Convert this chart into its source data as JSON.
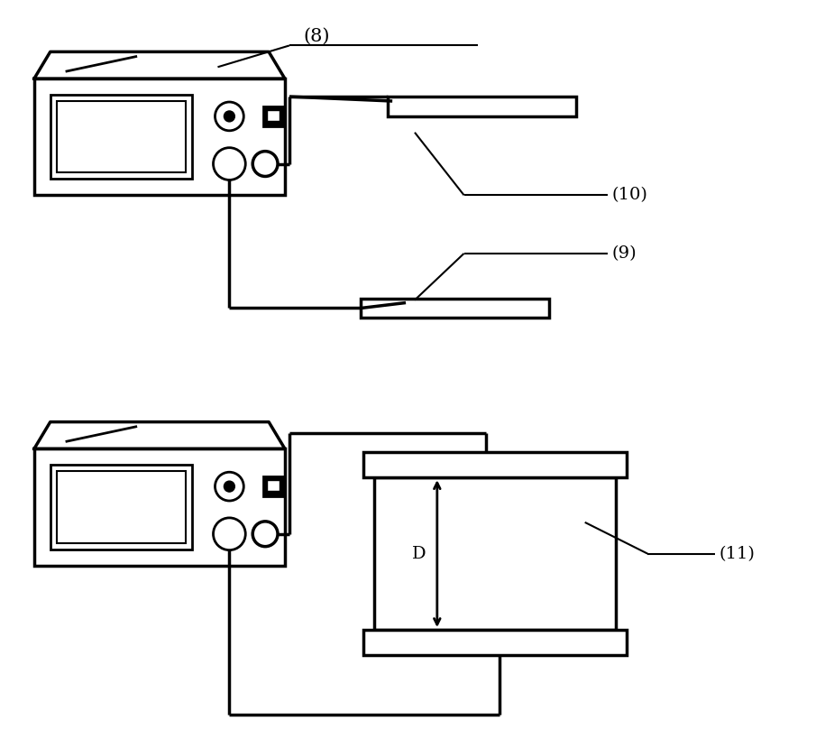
{
  "bg_color": "#ffffff",
  "line_color": "#000000",
  "lw_thin": 1.5,
  "lw_med": 2.0,
  "lw_thick": 2.5,
  "fig_width": 9.15,
  "fig_height": 8.19
}
